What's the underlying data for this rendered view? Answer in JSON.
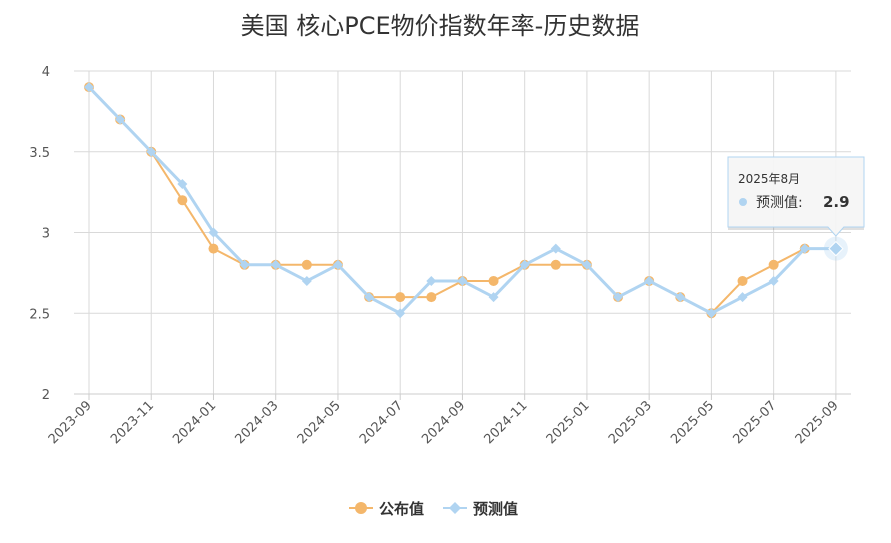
{
  "chart_data": {
    "type": "line",
    "title": "美国 核心PCE物价指数年率-历史数据",
    "ylim": [
      2,
      4
    ],
    "yticks": [
      "4",
      "3.5",
      "3",
      "2.5",
      "2"
    ],
    "ytick_values": [
      4,
      3.5,
      3,
      2.5,
      2
    ],
    "x": [
      "2023-09",
      "2023-10",
      "2023-11",
      "2023-12",
      "2024-01",
      "2024-02",
      "2024-03",
      "2024-04",
      "2024-05",
      "2024-06",
      "2024-07",
      "2024-08",
      "2024-09",
      "2024-10",
      "2024-11",
      "2024-12",
      "2025-01",
      "2025-02",
      "2025-03",
      "2025-04",
      "2025-05",
      "2025-06",
      "2025-07",
      "2025-08",
      "2025-09"
    ],
    "xtick_labels": [
      "2023-09",
      "2023-11",
      "2024-01",
      "2024-03",
      "2024-05",
      "2024-07",
      "2024-09",
      "2024-11",
      "2025-01",
      "2025-03",
      "2025-05",
      "2025-07",
      "2025-09"
    ],
    "grid": true,
    "legend_position": "bottom",
    "series": [
      {
        "name": "公布值",
        "color": "#f4b76b",
        "marker": "circle",
        "values": [
          3.9,
          3.7,
          3.5,
          3.2,
          2.9,
          2.8,
          2.8,
          2.8,
          2.8,
          2.6,
          2.6,
          2.6,
          2.7,
          2.7,
          2.8,
          2.8,
          2.8,
          2.6,
          2.7,
          2.6,
          2.5,
          2.7,
          2.8,
          2.9,
          null
        ]
      },
      {
        "name": "预测值",
        "color": "#b0d4f1",
        "marker": "diamond",
        "values": [
          3.9,
          3.7,
          3.5,
          3.3,
          3.0,
          2.8,
          2.8,
          2.7,
          2.8,
          2.6,
          2.5,
          2.7,
          2.7,
          2.6,
          2.8,
          2.9,
          2.8,
          2.6,
          2.7,
          2.6,
          2.5,
          2.6,
          2.7,
          2.9,
          2.9
        ]
      }
    ],
    "tooltip": {
      "date": "2025年8月",
      "label": "预测值:",
      "value": "2.9",
      "point_index": 24,
      "series_index": 1
    }
  }
}
